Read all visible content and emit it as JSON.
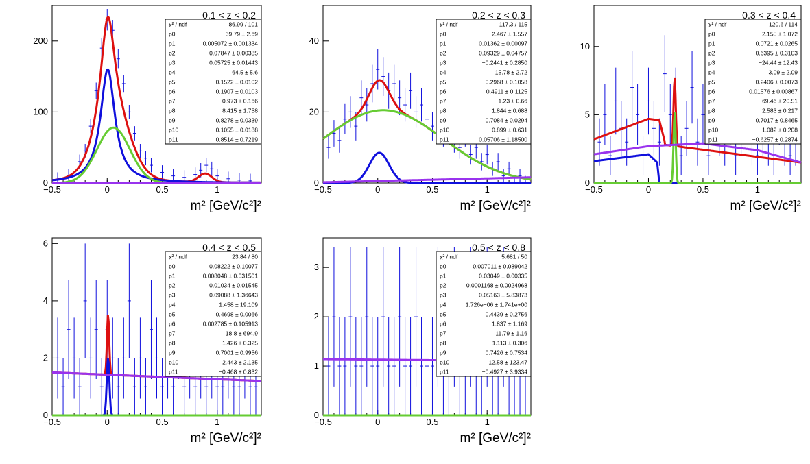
{
  "chart_data": [
    {
      "type": "line",
      "title": "0.1 < z < 0.2",
      "xlabel": "m² [GeV/c²]²",
      "xlim": [
        -0.5,
        1.4
      ],
      "ylim": [
        0,
        250
      ],
      "xticks": [
        "−0.5",
        "0",
        "0.5",
        "1"
      ],
      "yticks": [
        0,
        100,
        200
      ],
      "series": [
        {
          "color": "#1010dd",
          "role": "data-points",
          "x": [
            -0.45,
            -0.35,
            -0.25,
            -0.2,
            -0.15,
            -0.1,
            -0.05,
            0.0,
            0.05,
            0.1,
            0.15,
            0.2,
            0.25,
            0.3,
            0.35,
            0.4,
            0.5,
            0.6,
            0.7,
            0.8,
            0.85,
            0.9,
            0.95,
            1.0,
            1.1,
            1.2,
            1.3
          ],
          "y": [
            5,
            10,
            30,
            45,
            80,
            130,
            190,
            230,
            215,
            175,
            140,
            100,
            70,
            45,
            35,
            25,
            15,
            10,
            8,
            12,
            18,
            25,
            20,
            10,
            6,
            4,
            3
          ]
        },
        {
          "color": "#dd1010",
          "role": "total-fit",
          "peaks": [
            {
              "mu": 0.005,
              "sigma": 0.08,
              "amp": 160,
              "shape": "lorentz"
            },
            {
              "mu": 0.057,
              "sigma": 0.15,
              "amp": 78,
              "shape": "gauss"
            },
            {
              "mu": 0.89,
              "sigma": 0.06,
              "amp": 12,
              "shape": "gauss"
            }
          ]
        },
        {
          "color": "#1010dd",
          "role": "component",
          "peaks": [
            {
              "mu": 0.005,
              "sigma": 0.08,
              "amp": 160,
              "shape": "lorentz"
            }
          ]
        },
        {
          "color": "#66cc33",
          "role": "component",
          "peaks": [
            {
              "mu": 0.057,
              "sigma": 0.15,
              "amp": 78,
              "shape": "gauss"
            }
          ]
        },
        {
          "color": "#9933ee",
          "role": "background",
          "line": [
            [
              -0.5,
              0.5
            ],
            [
              1.4,
              0.5
            ]
          ]
        }
      ],
      "stats": {
        "chi2_label": "χ² / ndf",
        "chi2_value": "86.99 / 101",
        "params": [
          [
            "p0",
            "39.79 ± 2.69"
          ],
          [
            "p1",
            "0.005072 ± 0.001334"
          ],
          [
            "p2",
            "0.07847 ± 0.00385"
          ],
          [
            "p3",
            "0.05725 ± 0.01443"
          ],
          [
            "p4",
            "64.5 ± 5.6"
          ],
          [
            "p5",
            "0.1522 ± 0.0102"
          ],
          [
            "p6",
            "0.1907 ± 0.0103"
          ],
          [
            "p7",
            "−0.973 ± 0.166"
          ],
          [
            "p8",
            "8.415 ± 1.758"
          ],
          [
            "p9",
            "0.8278 ± 0.0339"
          ],
          [
            "p10",
            "0.1055 ± 0.0188"
          ],
          [
            "p11",
            "0.8514 ± 0.7219"
          ]
        ]
      }
    },
    {
      "type": "line",
      "title": "0.2 < z < 0.3",
      "xlabel": "m² [GeV/c²]²",
      "xlim": [
        -0.5,
        1.4
      ],
      "ylim": [
        0,
        50
      ],
      "xticks": [
        "−0.5",
        "0",
        "0.5",
        "1"
      ],
      "yticks": [
        0,
        20,
        40
      ],
      "series": [
        {
          "color": "#1010dd",
          "role": "data-points",
          "x": [
            -0.45,
            -0.4,
            -0.35,
            -0.3,
            -0.25,
            -0.2,
            -0.15,
            -0.1,
            -0.05,
            0.0,
            0.05,
            0.1,
            0.15,
            0.2,
            0.25,
            0.3,
            0.35,
            0.4,
            0.45,
            0.5,
            0.55,
            0.6,
            0.65,
            0.7,
            0.75,
            0.8,
            0.85,
            0.9,
            0.95,
            1.0,
            1.05,
            1.1,
            1.15,
            1.2,
            1.25,
            1.3,
            1.35
          ],
          "y": [
            10,
            14,
            12,
            18,
            20,
            16,
            24,
            22,
            28,
            32,
            30,
            26,
            28,
            24,
            22,
            26,
            20,
            22,
            18,
            16,
            18,
            14,
            16,
            12,
            10,
            14,
            8,
            10,
            6,
            8,
            4,
            6,
            2,
            4,
            0,
            2,
            0
          ]
        },
        {
          "color": "#dd1010",
          "role": "total-fit",
          "peaks": [
            {
              "mu": 0.014,
              "sigma": 0.09,
              "amp": 8.5,
              "shape": "gauss"
            },
            {
              "mu": 0.05,
              "sigma": 0.55,
              "amp": 20.5,
              "shape": "gauss"
            }
          ]
        },
        {
          "color": "#1010dd",
          "role": "component",
          "peaks": [
            {
              "mu": 0.014,
              "sigma": 0.09,
              "amp": 8.5,
              "shape": "gauss"
            }
          ]
        },
        {
          "color": "#66cc33",
          "role": "component",
          "peaks": [
            {
              "mu": 0.05,
              "sigma": 0.55,
              "amp": 20.5,
              "shape": "gauss"
            }
          ]
        },
        {
          "color": "#9933ee",
          "role": "background",
          "line": [
            [
              -0.5,
              0.2
            ],
            [
              1.4,
              1.6
            ]
          ]
        }
      ],
      "stats": {
        "chi2_label": "χ² / ndf",
        "chi2_value": "117.3 / 115",
        "params": [
          [
            "p0",
            "2.467 ± 1.557"
          ],
          [
            "p1",
            "0.01362 ± 0.00097"
          ],
          [
            "p2",
            "0.09329 ± 0.04757"
          ],
          [
            "p3",
            "−0.2441 ± 0.2850"
          ],
          [
            "p4",
            "15.78 ± 2.72"
          ],
          [
            "p5",
            "0.2968 ± 0.1058"
          ],
          [
            "p6",
            "0.4911 ± 0.1125"
          ],
          [
            "p7",
            "−1.23 ± 0.66"
          ],
          [
            "p8",
            "1.844 ± 0.688"
          ],
          [
            "p9",
            "0.7084 ± 0.0294"
          ],
          [
            "p10",
            "0.899 ± 0.631"
          ],
          [
            "p11",
            "0.05706 ± 1.18500"
          ]
        ]
      }
    },
    {
      "type": "line",
      "title": "0.3 < z < 0.4",
      "xlabel": "m² [GeV/c²]²",
      "xlim": [
        -0.5,
        1.4
      ],
      "ylim": [
        0,
        13
      ],
      "xticks": [
        "−0.5",
        "0",
        "0.5",
        "1"
      ],
      "yticks": [
        0,
        5,
        10
      ],
      "series": [
        {
          "color": "#1010dd",
          "role": "data-points",
          "x": [
            -0.45,
            -0.4,
            -0.35,
            -0.3,
            -0.25,
            -0.2,
            -0.15,
            -0.1,
            -0.05,
            0.0,
            0.05,
            0.1,
            0.15,
            0.2,
            0.25,
            0.3,
            0.35,
            0.4,
            0.45,
            0.5,
            0.55,
            0.6,
            0.65,
            0.7,
            0.75,
            0.8,
            0.85,
            0.9,
            0.95,
            1.0,
            1.05,
            1.1,
            1.15,
            1.2,
            1.25,
            1.3,
            1.35
          ],
          "y": [
            3,
            5,
            2,
            6,
            4,
            3,
            7,
            5,
            2,
            6,
            4,
            3,
            8,
            5,
            6,
            2,
            4,
            7,
            3,
            5,
            2,
            6,
            4,
            3,
            5,
            2,
            4,
            6,
            3,
            2,
            4,
            3,
            2,
            5,
            3,
            2,
            3
          ]
        },
        {
          "color": "#dd1010",
          "role": "total-fit",
          "custom": "z3-red"
        },
        {
          "color": "#1010dd",
          "role": "component",
          "custom": "z3-blue"
        },
        {
          "color": "#66cc33",
          "role": "component",
          "peaks": [
            {
              "mu": 0.24,
              "sigma": 0.01,
              "amp": 5.2,
              "shape": "gauss"
            }
          ]
        },
        {
          "color": "#9933ee",
          "role": "background",
          "curve": [
            [
              -0.5,
              2.1
            ],
            [
              0.0,
              2.7
            ],
            [
              0.5,
              2.9
            ],
            [
              1.0,
              2.4
            ],
            [
              1.4,
              1.5
            ]
          ]
        }
      ],
      "stats": {
        "chi2_label": "χ² / ndf",
        "chi2_value": "120.6 / 114",
        "params": [
          [
            "p0",
            "2.155 ± 1.072"
          ],
          [
            "p1",
            "0.0721 ± 0.0265"
          ],
          [
            "p2",
            "0.6395 ± 0.3103"
          ],
          [
            "p3",
            "−24.44 ± 12.43"
          ],
          [
            "p4",
            "3.09 ± 2.09"
          ],
          [
            "p5",
            "0.2406 ± 0.0073"
          ],
          [
            "p6",
            "0.01576 ± 0.00867"
          ],
          [
            "p7",
            "69.46 ± 20.51"
          ],
          [
            "p8",
            "2.583 ± 0.217"
          ],
          [
            "p9",
            "0.7017 ± 0.8465"
          ],
          [
            "p10",
            "1.082 ± 0.208"
          ],
          [
            "p11",
            "−0.6257 ± 0.2874"
          ]
        ]
      }
    },
    {
      "type": "line",
      "title": "0.4 < z < 0.5",
      "xlabel": "m² [GeV/c²]²",
      "xlim": [
        -0.5,
        1.4
      ],
      "ylim": [
        0,
        6.2
      ],
      "xticks": [
        "−0.5",
        "0",
        "0.5",
        "1"
      ],
      "yticks": [
        0,
        2,
        4,
        6
      ],
      "series": [
        {
          "color": "#1010dd",
          "role": "data-points",
          "x": [
            -0.45,
            -0.4,
            -0.35,
            -0.3,
            -0.25,
            -0.2,
            -0.15,
            -0.1,
            -0.05,
            0.0,
            0.05,
            0.1,
            0.15,
            0.2,
            0.25,
            0.3,
            0.35,
            0.4,
            0.45,
            0.5,
            0.55,
            0.6,
            0.65,
            0.7,
            0.75,
            0.8,
            0.85,
            0.9,
            0.95,
            1.0,
            1.05,
            1.1,
            1.15,
            1.2,
            1.25,
            1.3,
            1.35
          ],
          "y": [
            2,
            1,
            3,
            2,
            1,
            4,
            2,
            3,
            1,
            3,
            2,
            1,
            2,
            4,
            1,
            2,
            1,
            3,
            2,
            1,
            2,
            1,
            3,
            1,
            2,
            1,
            2,
            1,
            2,
            1,
            1,
            2,
            1,
            1,
            2,
            1,
            1
          ]
        },
        {
          "color": "#dd1010",
          "role": "total-fit",
          "peaks": [
            {
              "mu": 0.008,
              "sigma": 0.01,
              "amp": 2.1,
              "shape": "gauss"
            }
          ],
          "base": [
            [
              -0.5,
              1.5
            ],
            [
              1.4,
              1.2
            ]
          ]
        },
        {
          "color": "#1010dd",
          "role": "component",
          "peaks": [
            {
              "mu": 0.008,
              "sigma": 0.012,
              "amp": 2.0,
              "shape": "gauss"
            }
          ]
        },
        {
          "color": "#66cc33",
          "role": "component",
          "line": [
            [
              -0.5,
              0.0
            ],
            [
              1.4,
              0.0
            ]
          ]
        },
        {
          "color": "#9933ee",
          "role": "background",
          "line": [
            [
              -0.5,
              1.5
            ],
            [
              1.4,
              1.2
            ]
          ]
        }
      ],
      "stats": {
        "chi2_label": "χ² / ndf",
        "chi2_value": "23.84 / 80",
        "params": [
          [
            "p0",
            "0.08222 ± 0.10077"
          ],
          [
            "p1",
            "0.008048 ± 0.031501"
          ],
          [
            "p2",
            "0.01034 ± 0.01545"
          ],
          [
            "p3",
            "0.09088 ± 1.36643"
          ],
          [
            "p4",
            "1.458 ± 19.109"
          ],
          [
            "p5",
            "0.4698 ± 0.0066"
          ],
          [
            "p6",
            "0.002785 ± 0.105913"
          ],
          [
            "p7",
            "18.8 ± 694.9"
          ],
          [
            "p8",
            "1.426 ± 0.325"
          ],
          [
            "p9",
            "0.7001 ± 0.9956"
          ],
          [
            "p10",
            "2.443 ± 2.135"
          ],
          [
            "p11",
            "−0.468 ± 0.832"
          ]
        ]
      }
    },
    {
      "type": "line",
      "title": "0.5 < z < 0.8",
      "xlabel": "m² [GeV/c²]²",
      "xlim": [
        -0.5,
        1.4
      ],
      "ylim": [
        0,
        3.6
      ],
      "xticks": [
        "−0.5",
        "0",
        "0.5",
        "1"
      ],
      "yticks": [
        0,
        1,
        2,
        3
      ],
      "series": [
        {
          "color": "#1010dd",
          "role": "data-points",
          "x": [
            -0.45,
            -0.4,
            -0.35,
            -0.3,
            -0.25,
            -0.2,
            -0.15,
            -0.1,
            -0.05,
            0.0,
            0.05,
            0.1,
            0.15,
            0.2,
            0.25,
            0.3,
            0.35,
            0.4,
            0.45,
            0.5,
            0.55,
            0.6,
            0.65,
            0.7,
            0.75,
            0.8,
            0.85,
            0.9,
            0.95,
            1.0,
            1.05,
            1.1,
            1.15,
            1.2,
            1.25,
            1.3,
            1.35
          ],
          "y": [
            1,
            2,
            1,
            1,
            2,
            1,
            1,
            2,
            1,
            1,
            2,
            1,
            1,
            2,
            1,
            1,
            2,
            1,
            1,
            1,
            2,
            1,
            1,
            2,
            1,
            1,
            2,
            1,
            1,
            2,
            1,
            1,
            2,
            1,
            1,
            1,
            1
          ]
        },
        {
          "color": "#9933ee",
          "role": "background",
          "line": [
            [
              -0.5,
              1.14
            ],
            [
              1.4,
              1.1
            ]
          ]
        },
        {
          "color": "#66cc33",
          "role": "component",
          "line": [
            [
              -0.5,
              0.0
            ],
            [
              1.4,
              0.0
            ]
          ]
        }
      ],
      "stats": {
        "chi2_label": "χ² / ndf",
        "chi2_value": "5.681 / 50",
        "params": [
          [
            "p0",
            "0.007011 ± 0.089042"
          ],
          [
            "p1",
            "0.03049 ± 0.00335"
          ],
          [
            "p2",
            "0.0001168 ± 0.0024968"
          ],
          [
            "p3",
            "0.05163 ± 5.83873"
          ],
          [
            "p4",
            "1.726e−06 ± 1.741e+00"
          ],
          [
            "p5",
            "0.4439 ± 0.2756"
          ],
          [
            "p6",
            "1.837 ± 1.169"
          ],
          [
            "p7",
            "11.79 ± 1.16"
          ],
          [
            "p8",
            "1.113 ± 0.306"
          ],
          [
            "p9",
            "0.7426 ± 0.7534"
          ],
          [
            "p10",
            "12.58 ± 123.47"
          ],
          [
            "p11",
            "−0.4927 ± 3.9334"
          ]
        ]
      }
    }
  ]
}
